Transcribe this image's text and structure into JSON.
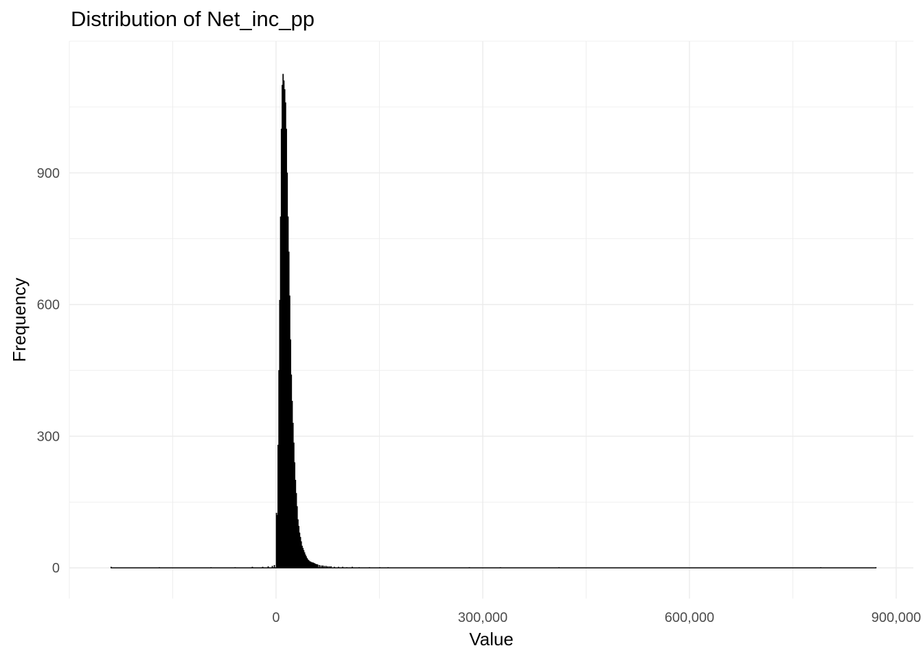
{
  "chart_data": {
    "type": "bar",
    "subtype": "histogram",
    "title": "Distribution of Net_inc_pp",
    "xlabel": "Value",
    "ylabel": "Frequency",
    "xlim": [
      -300000,
      925000
    ],
    "ylim": [
      -70,
      1200
    ],
    "x_ticks": [
      0,
      300000,
      600000,
      900000
    ],
    "x_tick_labels": [
      "0",
      "300,000",
      "600,000",
      "900,000"
    ],
    "y_ticks": [
      0,
      300,
      600,
      900
    ],
    "y_tick_labels": [
      "0",
      "300",
      "600",
      "900"
    ],
    "grid": true,
    "legend": "none",
    "bar_color": "#000000",
    "bin_width": 1200,
    "bins": [
      {
        "x": -240000,
        "y": 2
      },
      {
        "x": -170000,
        "y": 1
      },
      {
        "x": -95000,
        "y": 1
      },
      {
        "x": -60000,
        "y": 1
      },
      {
        "x": -35000,
        "y": 2
      },
      {
        "x": -20000,
        "y": 2
      },
      {
        "x": -12000,
        "y": 3
      },
      {
        "x": -6000,
        "y": 4
      },
      {
        "x": -3000,
        "y": 6
      },
      {
        "x": 0,
        "y": 125
      },
      {
        "x": 1200,
        "y": 120
      },
      {
        "x": 2400,
        "y": 280
      },
      {
        "x": 3600,
        "y": 450
      },
      {
        "x": 4800,
        "y": 610
      },
      {
        "x": 6000,
        "y": 800
      },
      {
        "x": 7200,
        "y": 1000
      },
      {
        "x": 8400,
        "y": 1100
      },
      {
        "x": 9600,
        "y": 1125
      },
      {
        "x": 10800,
        "y": 1110
      },
      {
        "x": 12000,
        "y": 1090
      },
      {
        "x": 13200,
        "y": 1060
      },
      {
        "x": 14400,
        "y": 1000
      },
      {
        "x": 15600,
        "y": 900
      },
      {
        "x": 16800,
        "y": 800
      },
      {
        "x": 18000,
        "y": 720
      },
      {
        "x": 19200,
        "y": 620
      },
      {
        "x": 20400,
        "y": 520
      },
      {
        "x": 21600,
        "y": 440
      },
      {
        "x": 22800,
        "y": 380
      },
      {
        "x": 24000,
        "y": 330
      },
      {
        "x": 25200,
        "y": 285
      },
      {
        "x": 26400,
        "y": 240
      },
      {
        "x": 27600,
        "y": 200
      },
      {
        "x": 28800,
        "y": 170
      },
      {
        "x": 30000,
        "y": 140
      },
      {
        "x": 31200,
        "y": 110
      },
      {
        "x": 32400,
        "y": 95
      },
      {
        "x": 33600,
        "y": 80
      },
      {
        "x": 34800,
        "y": 70
      },
      {
        "x": 36000,
        "y": 60
      },
      {
        "x": 37200,
        "y": 50
      },
      {
        "x": 38400,
        "y": 45
      },
      {
        "x": 39600,
        "y": 40
      },
      {
        "x": 40800,
        "y": 35
      },
      {
        "x": 42000,
        "y": 30
      },
      {
        "x": 43200,
        "y": 26
      },
      {
        "x": 44400,
        "y": 22
      },
      {
        "x": 45600,
        "y": 19
      },
      {
        "x": 46800,
        "y": 17
      },
      {
        "x": 48000,
        "y": 15
      },
      {
        "x": 49200,
        "y": 14
      },
      {
        "x": 50400,
        "y": 13
      },
      {
        "x": 51600,
        "y": 12
      },
      {
        "x": 52800,
        "y": 12
      },
      {
        "x": 54000,
        "y": 11
      },
      {
        "x": 55200,
        "y": 10
      },
      {
        "x": 56400,
        "y": 9
      },
      {
        "x": 57600,
        "y": 8
      },
      {
        "x": 58800,
        "y": 8
      },
      {
        "x": 60000,
        "y": 7
      },
      {
        "x": 62400,
        "y": 6
      },
      {
        "x": 64800,
        "y": 5
      },
      {
        "x": 67200,
        "y": 5
      },
      {
        "x": 69600,
        "y": 4
      },
      {
        "x": 72000,
        "y": 4
      },
      {
        "x": 74400,
        "y": 3
      },
      {
        "x": 76800,
        "y": 3
      },
      {
        "x": 79200,
        "y": 3
      },
      {
        "x": 84000,
        "y": 2
      },
      {
        "x": 90000,
        "y": 2
      },
      {
        "x": 96000,
        "y": 2
      },
      {
        "x": 102000,
        "y": 1
      },
      {
        "x": 110000,
        "y": 2
      },
      {
        "x": 120000,
        "y": 1
      },
      {
        "x": 135000,
        "y": 1
      },
      {
        "x": 150000,
        "y": 1
      },
      {
        "x": 162000,
        "y": 1
      },
      {
        "x": 280000,
        "y": 1
      },
      {
        "x": 325000,
        "y": 1
      },
      {
        "x": 410000,
        "y": 1
      },
      {
        "x": 790000,
        "y": 1
      },
      {
        "x": 870000,
        "y": 1
      }
    ]
  }
}
